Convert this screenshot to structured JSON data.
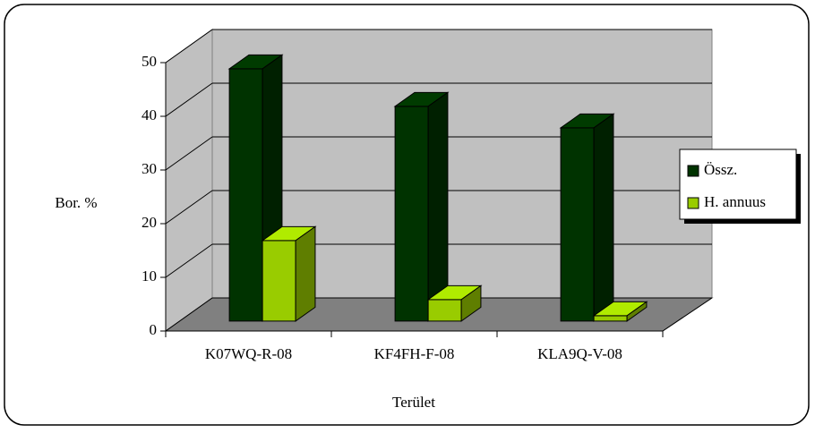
{
  "chart_data": {
    "type": "bar3d",
    "categories": [
      "K07WQ-R-08",
      "KF4FH-F-08",
      "KLA9Q-V-08"
    ],
    "series": [
      {
        "name": "Össz.",
        "color": "#003300",
        "values": [
          47,
          40,
          36
        ]
      },
      {
        "name": "H. annuus",
        "color": "#99cc00",
        "values": [
          15,
          4,
          1
        ]
      }
    ],
    "ylim": [
      0,
      50
    ],
    "yticks": [
      0,
      10,
      20,
      30,
      40,
      50
    ],
    "grid": true,
    "ylabel": "Bor. %",
    "xlabel": "Terület",
    "legend": "right"
  }
}
